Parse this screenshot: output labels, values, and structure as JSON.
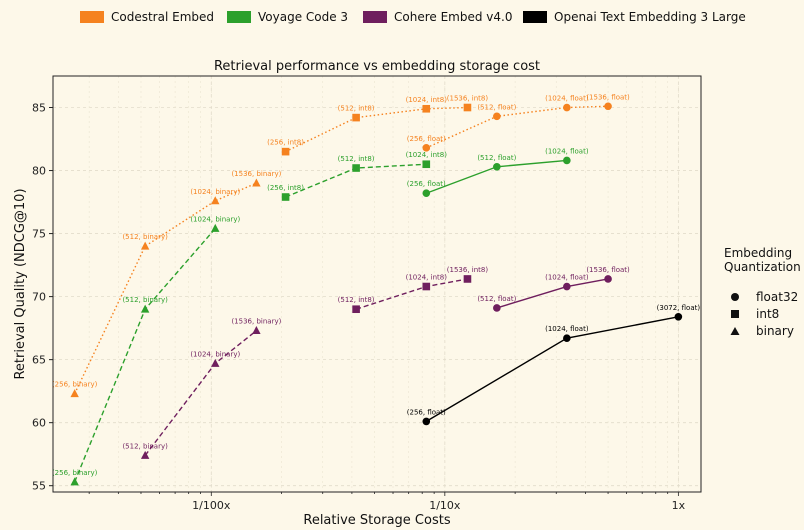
{
  "chart_data": {
    "type": "line",
    "title": "Retrieval performance vs embedding storage cost",
    "xlabel": "Relative Storage Costs",
    "ylabel": "Retrieval Quality (NDCG@10)",
    "x_scale": "log",
    "xlim": [
      0.0021,
      1.25
    ],
    "ylim": [
      54.5,
      87.5
    ],
    "x_ticks": [
      {
        "value": 0.01,
        "label": "1/100x"
      },
      {
        "value": 0.1,
        "label": "1/10x"
      },
      {
        "value": 1,
        "label": "1x"
      }
    ],
    "y_ticks": [
      55,
      60,
      65,
      70,
      75,
      80,
      85
    ],
    "grid": true,
    "legend": {
      "placement": "top",
      "entries": [
        "Codestral Embed",
        "Voyage Code 3",
        "Cohere Embed v4.0",
        "Openai Text Embedding 3 Large"
      ]
    },
    "marker_legend": {
      "title_line1": "Embedding",
      "title_line2": "Quantization",
      "placement": "right",
      "entries": [
        {
          "label": "float32",
          "marker": "circle"
        },
        {
          "label": "int8",
          "marker": "square"
        },
        {
          "label": "binary",
          "marker": "triangle"
        }
      ]
    },
    "series": [
      {
        "name": "Codestral Embed",
        "color": "#f5821f",
        "style": "dotted",
        "marker": "triangle",
        "label_pos": "above",
        "points": [
          {
            "x": 0.0026,
            "y": 62.3,
            "label": "(256, binary)"
          },
          {
            "x": 0.00521,
            "y": 74.0,
            "label": "(512, binary)"
          },
          {
            "x": 0.0104,
            "y": 77.6,
            "label": "(1024, binary)"
          },
          {
            "x": 0.0156,
            "y": 79.0,
            "label": "(1536, binary)"
          }
        ]
      },
      {
        "name": "Codestral Embed",
        "color": "#f5821f",
        "style": "dotted",
        "marker": "square",
        "label_pos": "above",
        "points": [
          {
            "x": 0.0208,
            "y": 81.5,
            "label": "(256, int8)"
          },
          {
            "x": 0.0417,
            "y": 84.2,
            "label": "(512, int8)"
          },
          {
            "x": 0.0833,
            "y": 84.9,
            "label": "(1024, int8)"
          },
          {
            "x": 0.125,
            "y": 85.0,
            "label": "(1536, int8)"
          }
        ]
      },
      {
        "name": "Codestral Embed",
        "color": "#f5821f",
        "style": "dotted",
        "marker": "circle",
        "label_pos": "above",
        "points": [
          {
            "x": 0.0833,
            "y": 81.8,
            "label": "(256, float)"
          },
          {
            "x": 0.167,
            "y": 84.3,
            "label": "(512, float)"
          },
          {
            "x": 0.333,
            "y": 85.0,
            "label": "(1024, float)"
          },
          {
            "x": 0.5,
            "y": 85.1,
            "label": "(1536, float)"
          }
        ]
      },
      {
        "name": "Voyage Code 3",
        "color": "#2ca02c",
        "style": "dashed",
        "marker": "triangle",
        "label_pos": "above",
        "points": [
          {
            "x": 0.0026,
            "y": 55.3,
            "label": "(256, binary)"
          },
          {
            "x": 0.00521,
            "y": 69.0,
            "label": "(512, binary)"
          },
          {
            "x": 0.0104,
            "y": 75.4,
            "label": "(1024, binary)"
          }
        ]
      },
      {
        "name": "Voyage Code 3",
        "color": "#2ca02c",
        "style": "dashed",
        "marker": "square",
        "label_pos": "above",
        "points": [
          {
            "x": 0.0208,
            "y": 77.9,
            "label": "(256, int8)"
          },
          {
            "x": 0.0417,
            "y": 80.2,
            "label": "(512, int8)"
          },
          {
            "x": 0.0833,
            "y": 80.5,
            "label": "(1024, int8)"
          }
        ]
      },
      {
        "name": "Voyage Code 3",
        "color": "#2ca02c",
        "style": "solid",
        "marker": "circle",
        "label_pos": "above",
        "points": [
          {
            "x": 0.0833,
            "y": 78.2,
            "label": "(256, float)"
          },
          {
            "x": 0.167,
            "y": 80.3,
            "label": "(512, float)"
          },
          {
            "x": 0.333,
            "y": 80.8,
            "label": "(1024, float)"
          }
        ]
      },
      {
        "name": "Cohere Embed v4.0",
        "color": "#6f1f5e",
        "style": "dashed",
        "marker": "triangle",
        "label_pos": "above",
        "points": [
          {
            "x": 0.00521,
            "y": 57.4,
            "label": "(512, binary)"
          },
          {
            "x": 0.0104,
            "y": 64.7,
            "label": "(1024, binary)"
          },
          {
            "x": 0.0156,
            "y": 67.3,
            "label": "(1536, binary)"
          }
        ]
      },
      {
        "name": "Cohere Embed v4.0",
        "color": "#6f1f5e",
        "style": "dashed",
        "marker": "square",
        "label_pos": "above",
        "points": [
          {
            "x": 0.0417,
            "y": 69.0,
            "label": "(512, int8)"
          },
          {
            "x": 0.0833,
            "y": 70.8,
            "label": "(1024, int8)"
          },
          {
            "x": 0.125,
            "y": 71.4,
            "label": "(1536, int8)"
          }
        ]
      },
      {
        "name": "Cohere Embed v4.0",
        "color": "#6f1f5e",
        "style": "solid",
        "marker": "circle",
        "label_pos": "above",
        "points": [
          {
            "x": 0.167,
            "y": 69.1,
            "label": "(512, float)"
          },
          {
            "x": 0.333,
            "y": 70.8,
            "label": "(1024, float)"
          },
          {
            "x": 0.5,
            "y": 71.4,
            "label": "(1536, float)"
          }
        ]
      },
      {
        "name": "Openai Text Embedding 3 Large",
        "color": "#000000",
        "style": "solid",
        "marker": "circle",
        "label_pos": "above",
        "points": [
          {
            "x": 0.0833,
            "y": 60.1,
            "label": "(256, float)"
          },
          {
            "x": 0.333,
            "y": 66.7,
            "label": "(1024, float)"
          },
          {
            "x": 1.0,
            "y": 68.4,
            "label": "(3072, float)"
          }
        ]
      }
    ]
  },
  "colors": {
    "codestral": "#f5821f",
    "voyage": "#2ca02c",
    "cohere": "#6f1f5e",
    "openai": "#000000",
    "background": "#fdf8e9"
  }
}
